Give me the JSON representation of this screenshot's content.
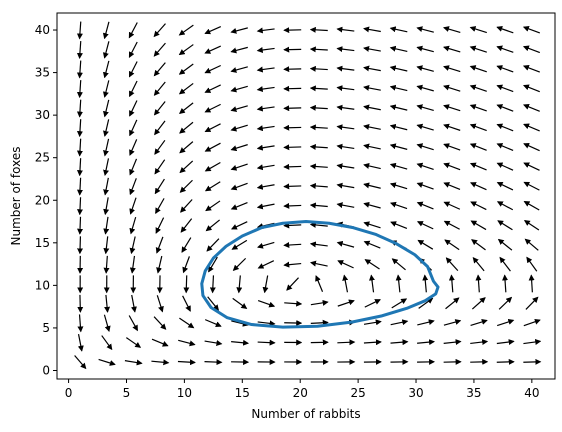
{
  "chart_data": {
    "type": "quiver",
    "title": "",
    "xlabel": "Number of rabbits",
    "ylabel": "Number of foxes",
    "xlim": [
      -1,
      42
    ],
    "ylim": [
      -1,
      42
    ],
    "xticks": [
      0,
      5,
      10,
      15,
      20,
      25,
      30,
      35,
      40
    ],
    "yticks": [
      0,
      5,
      10,
      15,
      20,
      25,
      30,
      35,
      40
    ],
    "grid": false,
    "vector_field": {
      "x_grid": [
        1,
        40,
        18
      ],
      "y_grid": [
        1,
        40,
        18
      ],
      "normalized": true,
      "color": "#000000"
    },
    "trajectory": {
      "color": "#1f77b4",
      "points": [
        [
          31.5,
          10.5
        ],
        [
          31.9,
          9.8
        ],
        [
          31.7,
          9.0
        ],
        [
          30.8,
          8.2
        ],
        [
          29.2,
          7.3
        ],
        [
          27.0,
          6.4
        ],
        [
          24.5,
          5.7
        ],
        [
          21.5,
          5.2
        ],
        [
          18.5,
          5.1
        ],
        [
          15.8,
          5.4
        ],
        [
          13.7,
          6.2
        ],
        [
          12.3,
          7.4
        ],
        [
          11.6,
          8.8
        ],
        [
          11.5,
          10.2
        ],
        [
          11.8,
          11.7
        ],
        [
          12.5,
          13.2
        ],
        [
          13.6,
          14.6
        ],
        [
          15.0,
          15.8
        ],
        [
          16.7,
          16.8
        ],
        [
          18.5,
          17.3
        ],
        [
          20.5,
          17.5
        ],
        [
          22.5,
          17.3
        ],
        [
          24.5,
          16.8
        ],
        [
          26.5,
          16.0
        ],
        [
          28.3,
          14.9
        ],
        [
          29.9,
          13.6
        ],
        [
          31.0,
          12.2
        ],
        [
          31.5,
          10.5
        ]
      ]
    }
  }
}
